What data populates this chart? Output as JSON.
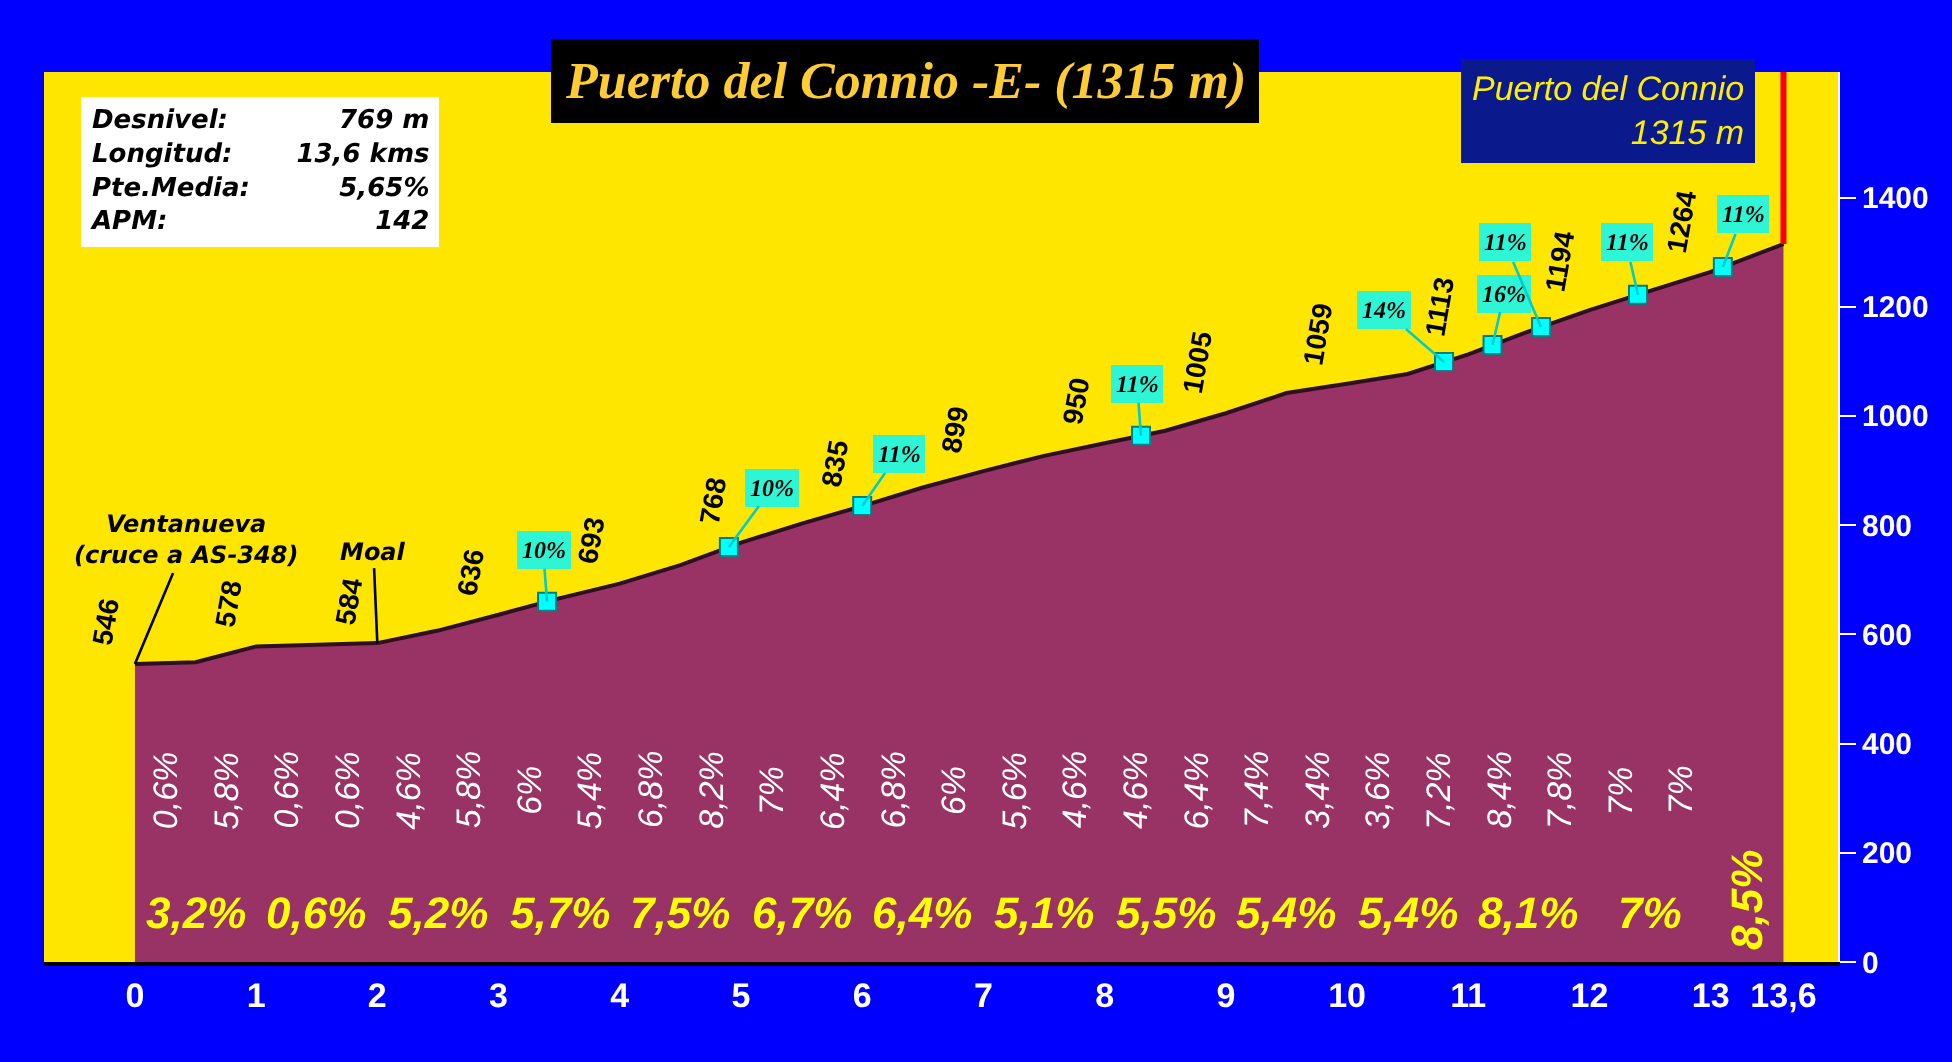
{
  "chart_data": {
    "type": "area",
    "title": "Puerto del Connio -E- (1315 m)",
    "x": [
      0,
      0.5,
      1,
      1.5,
      2,
      2.5,
      3,
      3.5,
      4,
      4.5,
      5,
      5.5,
      6,
      6.5,
      7,
      7.5,
      8,
      8.5,
      9,
      9.5,
      10,
      10.5,
      11,
      11.5,
      12,
      12.5,
      13,
      13.6
    ],
    "series": [
      {
        "color": "#993366",
        "values": [
          546,
          549,
          578,
          581,
          584,
          607,
          636,
          666,
          693,
          727,
          768,
          803,
          835,
          869,
          899,
          927,
          950,
          973,
          1005,
          1042,
          1059,
          1077,
          1113,
          1155,
          1194,
          1229,
          1264,
          1315
        ],
        "value_labels": [
          "546",
          null,
          "578",
          null,
          "584",
          null,
          "636",
          null,
          "693",
          null,
          "768",
          null,
          "835",
          null,
          "899",
          null,
          "950",
          null,
          "1005",
          null,
          "1059",
          null,
          "1113",
          null,
          "1194",
          null,
          "1264",
          null
        ]
      },
      {
        "type": "scatter",
        "color": "#00ffff",
        "marker": "square",
        "x": [
          3.4,
          4.9,
          6.0,
          8.3,
          10.8,
          11.2,
          11.6,
          12.4,
          13.1
        ],
        "values": [
          660,
          760,
          835,
          964,
          1099,
          1130,
          1163,
          1222,
          1273
        ]
      }
    ],
    "xlim": [
      -0.75,
      14.05
    ],
    "xticks": [
      0,
      1,
      2,
      3,
      4,
      5,
      6,
      7,
      8,
      9,
      10,
      11,
      12,
      13,
      {
        "value": 13.6,
        "label": "13,6"
      }
    ],
    "ylim": [
      0,
      1630
    ],
    "yticks": [
      0,
      200,
      400,
      600,
      800,
      1000,
      1200,
      1400
    ],
    "ref_lines": [
      {
        "axis": "x",
        "value": 13.6,
        "label": "Puerto del Connio\n1315 m",
        "color": "#ff0000"
      }
    ],
    "annotations": [
      "Desnivel:",
      "769 m",
      "Longitud:",
      "13,6 kms",
      "Pte.Media:",
      "5,65%",
      "APM:",
      "142",
      {
        "text": "Ventanueva\n(cruce a AS-348)",
        "x": 0,
        "y": 546
      },
      {
        "text": "Moal",
        "x": 2,
        "y": 584
      },
      "0,6%",
      "5,8%",
      "0,6%",
      "0,6%",
      "4,6%",
      "5,8%",
      "6%",
      "5,4%",
      "6,8%",
      "8,2%",
      "7%",
      "6,4%",
      "6,8%",
      "6%",
      "5,6%",
      "4,6%",
      "4,6%",
      "6,4%",
      "7,4%",
      "3,4%",
      "3,6%",
      "7,2%",
      "8,4%",
      "7,8%",
      "7%",
      "7%",
      {
        "text": "10%",
        "x": 3.4,
        "y": 660
      },
      {
        "text": "10%",
        "x": 4.9,
        "y": 760
      },
      {
        "text": "11%",
        "x": 6.0,
        "y": 835
      },
      {
        "text": "11%",
        "x": 8.3,
        "y": 964
      },
      {
        "text": "14%",
        "x": 10.8,
        "y": 1099
      },
      {
        "text": "16%",
        "x": 11.2,
        "y": 1130
      },
      {
        "text": "11%",
        "x": 11.6,
        "y": 1163
      },
      {
        "text": "11%",
        "x": 12.4,
        "y": 1222
      },
      {
        "text": "11%",
        "x": 13.1,
        "y": 1273
      },
      "3,2%",
      "0,6%",
      "5,2%",
      "5,7%",
      "7,5%",
      "6,7%",
      "6,4%",
      "5,1%",
      "5,5%",
      "5,4%",
      "5,4%",
      "8,1%",
      "7%",
      "8,5%"
    ]
  }
}
